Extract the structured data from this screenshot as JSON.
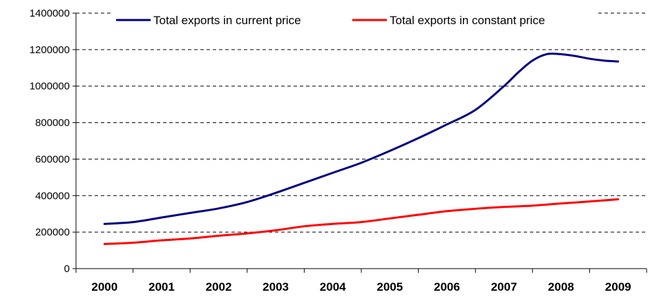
{
  "chart_data": {
    "type": "line",
    "title": "",
    "xlabel": "",
    "ylabel": "",
    "categories": [
      "2000",
      "2001",
      "2002",
      "2003",
      "2004",
      "2005",
      "2006",
      "2007",
      "2008",
      "2009"
    ],
    "ylim": [
      0,
      1400000
    ],
    "yticks": [
      0,
      200000,
      400000,
      600000,
      800000,
      1000000,
      1200000,
      1400000
    ],
    "ytick_labels": [
      "0",
      "200000",
      "400000",
      "600000",
      "800000",
      "1000000",
      "1200000",
      "1400000"
    ],
    "grid": "horizontal dashed",
    "legend_position": "top",
    "series": [
      {
        "name": "Total exports in current price",
        "color": "#000080",
        "x": [
          2000,
          2000.5,
          2001,
          2001.5,
          2002,
          2002.5,
          2003,
          2003.5,
          2004,
          2004.5,
          2005,
          2005.5,
          2006,
          2006.5,
          2007,
          2007.25,
          2007.5,
          2007.75,
          2008,
          2008.25,
          2008.5,
          2008.75,
          2009
        ],
        "values": [
          245000,
          255000,
          280000,
          305000,
          330000,
          365000,
          415000,
          470000,
          525000,
          580000,
          645000,
          715000,
          790000,
          870000,
          1000000,
          1075000,
          1140000,
          1175000,
          1175000,
          1165000,
          1150000,
          1140000,
          1135000
        ]
      },
      {
        "name": "Total exports in constant price",
        "color": "#ff0000",
        "x": [
          2000,
          2000.5,
          2001,
          2001.5,
          2002,
          2002.5,
          2003,
          2003.5,
          2004,
          2004.5,
          2005,
          2005.5,
          2006,
          2006.5,
          2007,
          2007.5,
          2008,
          2008.5,
          2009
        ],
        "values": [
          135000,
          142000,
          155000,
          165000,
          180000,
          193000,
          210000,
          232000,
          245000,
          255000,
          275000,
          295000,
          315000,
          328000,
          338000,
          345000,
          357000,
          368000,
          380000
        ]
      }
    ]
  }
}
